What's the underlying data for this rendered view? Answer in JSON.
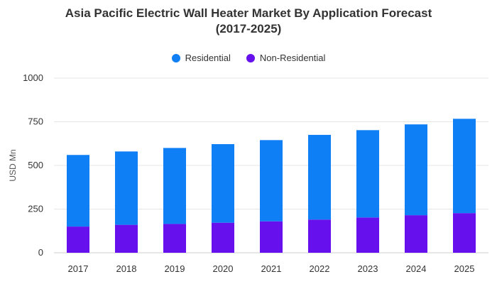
{
  "chart_data": {
    "type": "bar",
    "stacked": true,
    "title_line1": "Asia Pacific Electric Wall Heater Market By Application Forecast",
    "title_line2": "(2017-2025)",
    "ylabel": "USD Mn",
    "xlabel": "",
    "ylim": [
      0,
      1000
    ],
    "yticks": [
      0,
      250,
      500,
      750,
      1000
    ],
    "grid": true,
    "legend_position": "top-center",
    "categories": [
      "2017",
      "2018",
      "2019",
      "2020",
      "2021",
      "2022",
      "2023",
      "2024",
      "2025"
    ],
    "series": [
      {
        "name": "Residential",
        "color": "#0F7FF5",
        "values": [
          410,
          420,
          435,
          450,
          465,
          485,
          500,
          520,
          540
        ]
      },
      {
        "name": "Non-Residential",
        "color": "#6610EE",
        "values": [
          150,
          160,
          165,
          172,
          180,
          190,
          202,
          215,
          227
        ]
      }
    ]
  }
}
